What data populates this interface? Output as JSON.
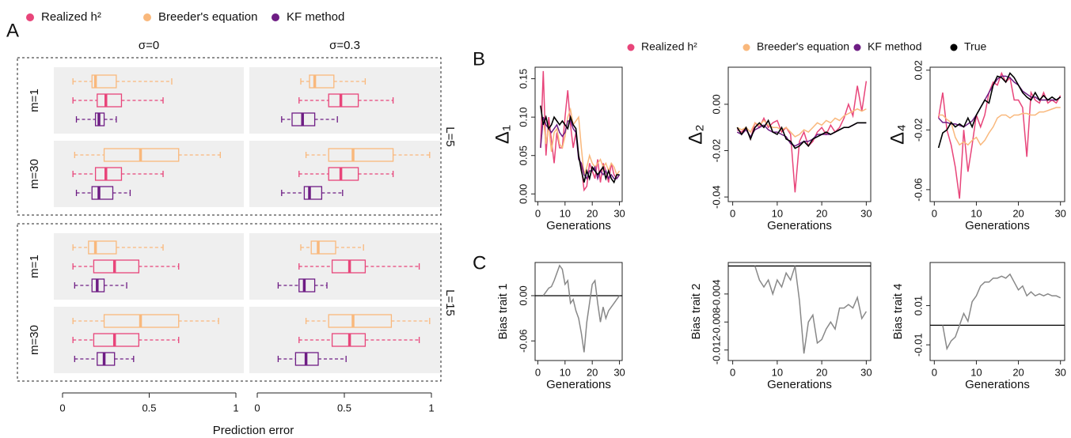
{
  "chart_data": [
    {
      "type": "box",
      "panel_label": "A",
      "columns": [
        "σ=0",
        "σ=0.3"
      ],
      "groups": [
        {
          "label": "L=5",
          "rows": [
            "m=1",
            "m=30"
          ]
        },
        {
          "label": "L=15",
          "rows": [
            "m=1",
            "m=30"
          ]
        }
      ],
      "xlabel": "Prediction error",
      "xlim": [
        0,
        1
      ],
      "xticks": [
        0,
        0.5,
        1
      ],
      "series": [
        {
          "name": "Realized h²",
          "color": "#e8457a",
          "boxes": [
            [
              0.06,
              0.2,
              0.25,
              0.34,
              0.58
            ],
            [
              0.24,
              0.41,
              0.48,
              0.58,
              0.78
            ],
            [
              0.06,
              0.19,
              0.25,
              0.34,
              0.58
            ],
            [
              0.24,
              0.41,
              0.48,
              0.58,
              0.78
            ],
            [
              0.06,
              0.18,
              0.3,
              0.44,
              0.67
            ],
            [
              0.24,
              0.43,
              0.53,
              0.62,
              0.93
            ],
            [
              0.06,
              0.18,
              0.3,
              0.44,
              0.67
            ],
            [
              0.24,
              0.43,
              0.53,
              0.62,
              0.93
            ]
          ]
        },
        {
          "name": "Breeder's equation",
          "color": "#f9b87c",
          "boxes": [
            [
              0.06,
              0.17,
              0.19,
              0.31,
              0.63
            ],
            [
              0.25,
              0.3,
              0.33,
              0.44,
              0.62
            ],
            [
              0.07,
              0.24,
              0.45,
              0.67,
              0.91
            ],
            [
              0.28,
              0.41,
              0.55,
              0.78,
              0.99
            ],
            [
              0.06,
              0.15,
              0.19,
              0.31,
              0.58
            ],
            [
              0.25,
              0.31,
              0.35,
              0.45,
              0.61
            ],
            [
              0.06,
              0.24,
              0.45,
              0.67,
              0.9
            ],
            [
              0.28,
              0.41,
              0.55,
              0.77,
              0.99
            ]
          ]
        },
        {
          "name": "KF method",
          "color": "#6e1d84",
          "boxes": [
            [
              0.08,
              0.19,
              0.21,
              0.24,
              0.31
            ],
            [
              0.14,
              0.2,
              0.26,
              0.33,
              0.46
            ],
            [
              0.08,
              0.17,
              0.21,
              0.29,
              0.39
            ],
            [
              0.14,
              0.27,
              0.3,
              0.37,
              0.49
            ],
            [
              0.07,
              0.17,
              0.2,
              0.24,
              0.37
            ],
            [
              0.12,
              0.24,
              0.27,
              0.33,
              0.4
            ],
            [
              0.07,
              0.2,
              0.24,
              0.3,
              0.41
            ],
            [
              0.12,
              0.22,
              0.28,
              0.35,
              0.51
            ]
          ]
        }
      ]
    },
    {
      "type": "line",
      "panel_label": "B",
      "legend": true,
      "ylabel": "Δ₁",
      "xlabel": "Generations",
      "xlim": [
        -1,
        31
      ],
      "xticks": [
        0,
        10,
        20,
        30
      ],
      "ylim": [
        -0.01,
        0.165
      ],
      "yticks": [
        {
          "value": 0,
          "label": "0.00"
        },
        {
          "value": 0.05,
          "label": "0.05"
        },
        {
          "value": 0.1,
          "label": "0.10"
        },
        {
          "value": 0.15,
          "label": "0.15"
        }
      ],
      "x": [
        1,
        2,
        3,
        4,
        5,
        6,
        7,
        8,
        9,
        10,
        11,
        12,
        13,
        14,
        15,
        16,
        17,
        18,
        19,
        20,
        21,
        22,
        23,
        24,
        25,
        26,
        27,
        28,
        29,
        30
      ],
      "series": [
        {
          "name": "Realized h²",
          "color": "#e8457a",
          "values": [
            0.06,
            0.16,
            0.05,
            0.1,
            0.07,
            0.04,
            0.08,
            0.06,
            0.06,
            0.1,
            0.135,
            0.09,
            0.06,
            0.08,
            0.05,
            0.035,
            0.005,
            0.01,
            0.04,
            0.03,
            0.02,
            0.045,
            0.015,
            0.04,
            0.03,
            0.015,
            0.04,
            0.025,
            0.02,
            0.025
          ]
        },
        {
          "name": "Breeder's equation",
          "color": "#f9b87c",
          "values": [
            0.06,
            0.1,
            0.065,
            0.09,
            0.055,
            0.08,
            0.085,
            0.065,
            0.06,
            0.075,
            0.1,
            0.11,
            0.09,
            0.095,
            0.1,
            0.06,
            0.025,
            0.035,
            0.05,
            0.04,
            0.035,
            0.04,
            0.045,
            0.035,
            0.04,
            0.03,
            0.04,
            0.035,
            0.025,
            0.03
          ]
        },
        {
          "name": "KF method",
          "color": "#6e1d84",
          "values": [
            0.06,
            0.1,
            0.09,
            0.085,
            0.08,
            0.085,
            0.09,
            0.08,
            0.075,
            0.08,
            0.095,
            0.095,
            0.085,
            0.08,
            0.045,
            0.04,
            0.025,
            0.02,
            0.03,
            0.03,
            0.035,
            0.02,
            0.03,
            0.025,
            0.03,
            0.02,
            0.025,
            0.02,
            0.02,
            0.025
          ]
        },
        {
          "name": "True",
          "color": "#000000",
          "values": [
            0.115,
            0.09,
            0.1,
            0.085,
            0.09,
            0.1,
            0.095,
            0.09,
            0.095,
            0.09,
            0.085,
            0.1,
            0.09,
            0.085,
            0.05,
            0.03,
            0.015,
            0.03,
            0.02,
            0.035,
            0.03,
            0.025,
            0.03,
            0.035,
            0.02,
            0.03,
            0.02,
            0.015,
            0.025,
            0.025
          ]
        }
      ]
    },
    {
      "type": "line",
      "ylabel": "Δ₂",
      "xlabel": "Generations",
      "xlim": [
        -1,
        31
      ],
      "xticks": [
        0,
        10,
        20,
        30
      ],
      "ylim": [
        -0.042,
        0.016
      ],
      "yticks": [
        {
          "value": -0.04,
          "label": "-0.04"
        },
        {
          "value": -0.02,
          "label": "-0.02"
        },
        {
          "value": 0,
          "label": "0.00"
        }
      ],
      "x": [
        1,
        2,
        3,
        4,
        5,
        6,
        7,
        8,
        9,
        10,
        11,
        12,
        13,
        14,
        15,
        16,
        17,
        18,
        19,
        20,
        21,
        22,
        23,
        24,
        25,
        26,
        27,
        28,
        29,
        30
      ],
      "series": [
        {
          "color": "#e8457a",
          "values": [
            -0.011,
            -0.012,
            -0.01,
            -0.015,
            -0.008,
            -0.01,
            -0.006,
            -0.01,
            -0.008,
            -0.007,
            -0.012,
            -0.01,
            -0.013,
            -0.038,
            -0.016,
            -0.012,
            -0.018,
            -0.016,
            -0.012,
            -0.01,
            -0.013,
            -0.009,
            -0.012,
            -0.01,
            -0.006,
            0,
            -0.005,
            0.008,
            -0.003,
            0.01
          ]
        },
        {
          "color": "#f9b87c",
          "values": [
            -0.01,
            -0.011,
            -0.01,
            -0.012,
            -0.008,
            -0.009,
            -0.007,
            -0.009,
            -0.01,
            -0.01,
            -0.011,
            -0.01,
            -0.012,
            -0.014,
            -0.013,
            -0.011,
            -0.012,
            -0.01,
            -0.008,
            -0.009,
            -0.007,
            -0.008,
            -0.006,
            -0.007,
            -0.005,
            -0.004,
            -0.003,
            -0.002,
            -0.003,
            -0.002
          ]
        },
        {
          "color": "#6e1d84",
          "values": [
            -0.012,
            -0.013,
            -0.011,
            -0.014,
            -0.011,
            -0.01,
            -0.009,
            -0.011,
            -0.012,
            -0.012,
            -0.013,
            -0.014,
            -0.017,
            -0.018,
            -0.017,
            -0.016,
            -0.016,
            -0.015,
            -0.013,
            -0.013,
            -0.013,
            -0.013,
            -0.012,
            -0.011,
            -0.01,
            -0.01,
            -0.009,
            -0.008,
            -0.008,
            -0.008
          ]
        },
        {
          "color": "#000000",
          "values": [
            -0.01,
            -0.013,
            -0.01,
            -0.015,
            -0.01,
            -0.008,
            -0.01,
            -0.007,
            -0.012,
            -0.013,
            -0.01,
            -0.015,
            -0.016,
            -0.019,
            -0.018,
            -0.016,
            -0.018,
            -0.015,
            -0.014,
            -0.013,
            -0.012,
            -0.013,
            -0.012,
            -0.011,
            -0.01,
            -0.01,
            -0.009,
            -0.008,
            -0.008,
            -0.008
          ]
        }
      ]
    },
    {
      "type": "line",
      "ylabel": "Δ₄",
      "xlabel": "Generations",
      "xlim": [
        -1,
        31
      ],
      "xticks": [
        0,
        10,
        20,
        30
      ],
      "ylim": [
        -0.068,
        0.022
      ],
      "yticks": [
        -0.06,
        -0.02,
        0.02
      ],
      "x": [
        1,
        2,
        3,
        4,
        5,
        6,
        7,
        8,
        9,
        10,
        11,
        12,
        13,
        14,
        15,
        16,
        17,
        18,
        19,
        20,
        21,
        22,
        23,
        24,
        25,
        26,
        27,
        28,
        29,
        30
      ],
      "series": [
        {
          "color": "#e8457a",
          "values": [
            -0.012,
            0.005,
            -0.02,
            -0.03,
            -0.045,
            -0.066,
            -0.02,
            -0.048,
            -0.03,
            -0.01,
            -0.018,
            -0.01,
            0.005,
            0.012,
            0.01,
            0.018,
            0.012,
            0.015,
            0,
            0,
            -0.005,
            -0.038,
            0.005,
            0,
            -0.002,
            0.005,
            -0.002,
            0,
            -0.002,
            0.003
          ]
        },
        {
          "color": "#f9b87c",
          "values": [
            -0.01,
            -0.01,
            -0.013,
            -0.015,
            -0.025,
            -0.03,
            -0.028,
            -0.03,
            -0.027,
            -0.025,
            -0.03,
            -0.027,
            -0.022,
            -0.018,
            -0.012,
            -0.01,
            -0.01,
            -0.012,
            -0.01,
            -0.01,
            -0.009,
            -0.009,
            -0.01,
            -0.01,
            -0.008,
            -0.008,
            -0.007,
            -0.006,
            -0.005,
            -0.005
          ]
        },
        {
          "color": "#6e1d84",
          "values": [
            -0.012,
            -0.015,
            -0.015,
            -0.016,
            -0.016,
            -0.017,
            -0.018,
            -0.016,
            -0.014,
            -0.01,
            -0.005,
            0,
            0.005,
            0.01,
            0.014,
            0.016,
            0.016,
            0.015,
            0.012,
            0.01,
            0.006,
            0.004,
            0.002,
            0.002,
            0,
            0,
            0,
            0,
            0,
            0.002
          ]
        },
        {
          "color": "#000000",
          "values": [
            -0.032,
            -0.022,
            -0.02,
            -0.015,
            -0.018,
            -0.016,
            -0.018,
            -0.012,
            -0.018,
            -0.01,
            -0.005,
            0,
            -0.002,
            0.01,
            0.016,
            0.015,
            0.012,
            0.018,
            0.015,
            0.01,
            0.005,
            0.002,
            0,
            0.005,
            0,
            0.003,
            0,
            0.002,
            0,
            0.002
          ]
        }
      ]
    },
    {
      "type": "line",
      "panel_label": "C",
      "ylabel": "Bias trait 1",
      "xlabel": "Generations",
      "xlim": [
        -1,
        31
      ],
      "xticks": [
        0,
        10,
        20,
        30
      ],
      "ylim": [
        -0.086,
        0.044
      ],
      "yticks": [
        {
          "value": -0.06,
          "label": "-0.06"
        },
        {
          "value": 0,
          "label": "0.00"
        }
      ],
      "hline": 0,
      "x": [
        2,
        3,
        4,
        5,
        6,
        7,
        8,
        9,
        10,
        11,
        12,
        13,
        14,
        15,
        16,
        17,
        18,
        19,
        20,
        21,
        22,
        23,
        24,
        25,
        26,
        27,
        28,
        29,
        30
      ],
      "series": [
        {
          "color": "#888888",
          "values": [
            0,
            0.005,
            0.01,
            0.012,
            0.02,
            0.03,
            0.04,
            0.035,
            0.015,
            0.02,
            -0.01,
            -0.005,
            -0.02,
            -0.03,
            -0.05,
            -0.075,
            -0.035,
            -0.01,
            0.015,
            0.02,
            -0.01,
            -0.035,
            -0.015,
            -0.03,
            -0.02,
            -0.015,
            -0.01,
            -0.005,
            0
          ]
        }
      ]
    },
    {
      "type": "line",
      "ylabel": "Bias trait 2",
      "xlabel": "Generations",
      "xlim": [
        -1,
        31
      ],
      "xticks": [
        0,
        10,
        20,
        30
      ],
      "ylim": [
        -0.0135,
        0.0005
      ],
      "yticks": [
        -0.012,
        -0.008,
        -0.004
      ],
      "hline": 0,
      "x": [
        5,
        6,
        7,
        8,
        9,
        10,
        11,
        12,
        13,
        14,
        15,
        16,
        17,
        18,
        19,
        20,
        21,
        22,
        23,
        24,
        25,
        26,
        27,
        28,
        29,
        30
      ],
      "series": [
        {
          "color": "#888888",
          "values": [
            0,
            -0.002,
            -0.003,
            -0.002,
            -0.004,
            -0.002,
            -0.003,
            -0.001,
            -0.002,
            0,
            -0.005,
            -0.0125,
            -0.008,
            -0.007,
            -0.011,
            -0.0105,
            -0.009,
            -0.008,
            -0.009,
            -0.006,
            -0.006,
            -0.0055,
            -0.006,
            -0.0045,
            -0.0075,
            -0.0065
          ]
        }
      ]
    },
    {
      "type": "line",
      "ylabel": "Bias trait 4",
      "xlabel": "Generations",
      "xlim": [
        -1,
        31
      ],
      "xticks": [
        0,
        10,
        20,
        30
      ],
      "ylim": [
        -0.018,
        0.032
      ],
      "yticks": [
        -0.01,
        0.01
      ],
      "hline": 0,
      "x": [
        2,
        3,
        4,
        5,
        6,
        7,
        8,
        9,
        10,
        11,
        12,
        13,
        14,
        15,
        16,
        17,
        18,
        19,
        20,
        21,
        22,
        23,
        24,
        25,
        26,
        27,
        28,
        29,
        30
      ],
      "series": [
        {
          "color": "#888888",
          "values": [
            0,
            -0.012,
            -0.008,
            -0.006,
            0,
            0.006,
            0.002,
            0.012,
            0.015,
            0.02,
            0.022,
            0.022,
            0.024,
            0.024,
            0.025,
            0.024,
            0.026,
            0.022,
            0.018,
            0.02,
            0.015,
            0.017,
            0.015,
            0.016,
            0.015,
            0.016,
            0.015,
            0.015,
            0.014
          ]
        }
      ]
    }
  ]
}
